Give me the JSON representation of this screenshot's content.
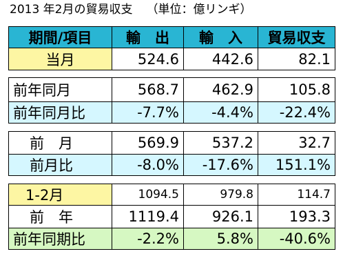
{
  "title": {
    "main": "2013 年2月の貿易収支",
    "unit": "（単位：億リンギ）"
  },
  "header": {
    "col0": "期間/項目",
    "col1": "輸　出",
    "col2": "輸　入",
    "col3": "貿易収支"
  },
  "block1": {
    "label": "当月",
    "v1": "524.6",
    "v2": "442.6",
    "v3": "82.1"
  },
  "block2": {
    "row1": {
      "label": "前年同月",
      "v1": "568.7",
      "v2": "462.9",
      "v3": "105.8"
    },
    "row2": {
      "label": "前年同月比",
      "v1": "-7.7%",
      "v2": "-4.4%",
      "v3": "-22.4%"
    }
  },
  "block3": {
    "row1": {
      "label": "前　月",
      "v1": "569.9",
      "v2": "537.2",
      "v3": "32.7"
    },
    "row2": {
      "label": "前月比",
      "v1": "-8.0%",
      "v2": "-17.6%",
      "v3": "151.1%"
    }
  },
  "block4": {
    "row1": {
      "label": "1-2月",
      "v1": "1094.5",
      "v2": "979.8",
      "v3": "114.7"
    },
    "row2": {
      "label": "前　年",
      "v1": "1119.4",
      "v2": "926.1",
      "v3": "193.3"
    },
    "row3": {
      "label": "前年同期比",
      "v1": "-2.2%",
      "v2": "5.8%",
      "v3": "-40.6%"
    }
  }
}
